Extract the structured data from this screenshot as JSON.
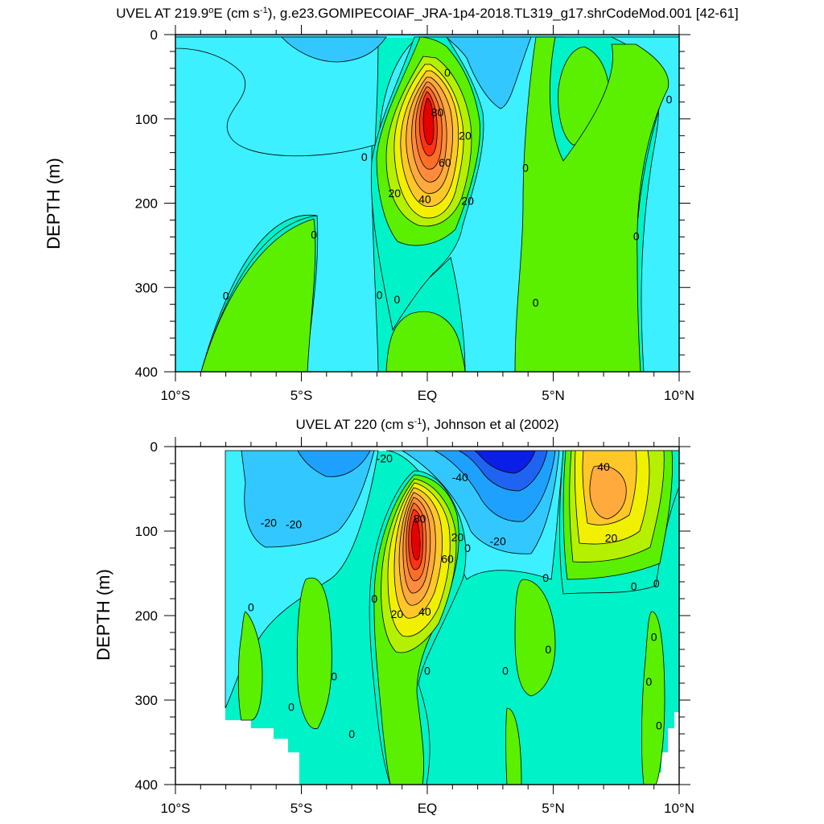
{
  "chart_data": [
    {
      "type": "contour",
      "title": "UVEL AT 219.9°E (cm s⁻¹), g.e23.GOMIPECOIAF_JRA-1p4-2018.TL319_g17.shrCodeMod.001 [42-61]",
      "title_parts": {
        "pre": "UVEL AT 219.9",
        "deg": "o",
        "mid": "E (cm s",
        "sup": "-1",
        "post": "), g.e23.GOMIPECOIAF_JRA-1p4-2018.TL319_g17.shrCodeMod.001 [42-61]"
      },
      "ylabel": "DEPTH (m)",
      "xlim": [
        -10,
        10
      ],
      "ylim": [
        400,
        0
      ],
      "x_ticks": [
        -10,
        -5,
        0,
        5,
        10
      ],
      "x_tick_labels": [
        "10°S",
        "5°S",
        "EQ",
        "5°N",
        "10°N"
      ],
      "y_ticks": [
        0,
        100,
        200,
        300,
        400
      ],
      "y_tick_labels": [
        "0",
        "100",
        "200",
        "300",
        "400"
      ],
      "contour_levels": [
        -40,
        -30,
        -20,
        -10,
        0,
        10,
        20,
        30,
        40,
        50,
        60,
        70,
        80,
        90
      ],
      "cores": [
        {
          "kind": "max",
          "x": 0.0,
          "y": 120,
          "value": 90
        },
        {
          "kind": "max",
          "x": 6.8,
          "y": 70,
          "value": 10
        },
        {
          "kind": "min",
          "x": 1.3,
          "y": 25,
          "value": -10
        }
      ],
      "contour_labels": [
        {
          "text": "80",
          "x": 0.4,
          "y": 92
        },
        {
          "text": "60",
          "x": 0.7,
          "y": 152
        },
        {
          "text": "40",
          "x": -0.1,
          "y": 195
        },
        {
          "text": "20",
          "x": -1.3,
          "y": 188
        },
        {
          "text": "20",
          "x": 1.5,
          "y": 120
        },
        {
          "text": "20",
          "x": 1.6,
          "y": 197
        },
        {
          "text": "0",
          "x": 0.8,
          "y": 45
        },
        {
          "text": "0",
          "x": -2.5,
          "y": 145
        },
        {
          "text": "0",
          "x": 3.9,
          "y": 158
        },
        {
          "text": "0",
          "x": -4.5,
          "y": 237
        },
        {
          "text": "0",
          "x": 8.3,
          "y": 239
        },
        {
          "text": "0",
          "x": 9.6,
          "y": 77
        },
        {
          "text": "0",
          "x": -8.0,
          "y": 310
        },
        {
          "text": "0",
          "x": -1.9,
          "y": 309
        },
        {
          "text": "0",
          "x": -1.2,
          "y": 314
        },
        {
          "text": "0",
          "x": 4.3,
          "y": 318
        }
      ]
    },
    {
      "type": "contour",
      "title": "UVEL AT 220 (cm s⁻¹), Johnson et al (2002)",
      "title_parts": {
        "pre": "UVEL AT 220 (cm s",
        "sup": "-1",
        "post": "), Johnson et al (2002)"
      },
      "ylabel": "DEPTH (m)",
      "xlim": [
        -10,
        10
      ],
      "ylim": [
        400,
        0
      ],
      "x_ticks": [
        -10,
        -5,
        0,
        5,
        10
      ],
      "x_tick_labels": [
        "10°S",
        "5°S",
        "EQ",
        "5°N",
        "10°N"
      ],
      "y_ticks": [
        0,
        100,
        200,
        300,
        400
      ],
      "y_tick_labels": [
        "0",
        "100",
        "200",
        "300",
        "400"
      ],
      "contour_levels": [
        -40,
        -30,
        -20,
        -10,
        0,
        10,
        20,
        30,
        40,
        50,
        60,
        70,
        80,
        90
      ],
      "cores": [
        {
          "kind": "max",
          "x": -0.3,
          "y": 118,
          "value": 90
        },
        {
          "kind": "max",
          "x": 6.9,
          "y": 60,
          "value": 40
        },
        {
          "kind": "min",
          "x": 2.7,
          "y": 10,
          "value": -40
        }
      ],
      "contour_labels": [
        {
          "text": "80",
          "x": -0.3,
          "y": 85
        },
        {
          "text": "60",
          "x": 0.8,
          "y": 133
        },
        {
          "text": "40",
          "x": -0.1,
          "y": 195
        },
        {
          "text": "20",
          "x": -1.2,
          "y": 198
        },
        {
          "text": "20",
          "x": 1.2,
          "y": 107
        },
        {
          "text": "20",
          "x": 7.3,
          "y": 108
        },
        {
          "text": "40",
          "x": 7.0,
          "y": 24
        },
        {
          "text": "-20",
          "x": -1.7,
          "y": 14
        },
        {
          "text": "-40",
          "x": 1.3,
          "y": 36
        },
        {
          "text": "-20",
          "x": 2.8,
          "y": 112
        },
        {
          "text": "-20",
          "x": -6.3,
          "y": 90
        },
        {
          "text": "-20",
          "x": -5.3,
          "y": 92
        },
        {
          "text": "0",
          "x": 1.6,
          "y": 120
        },
        {
          "text": "0",
          "x": 4.7,
          "y": 155
        },
        {
          "text": "0",
          "x": -7.0,
          "y": 190
        },
        {
          "text": "0",
          "x": -2.1,
          "y": 180
        },
        {
          "text": "0",
          "x": 0.0,
          "y": 265
        },
        {
          "text": "0",
          "x": -3.7,
          "y": 272
        },
        {
          "text": "0",
          "x": 3.1,
          "y": 265
        },
        {
          "text": "0",
          "x": 4.8,
          "y": 240
        },
        {
          "text": "0",
          "x": 8.2,
          "y": 165
        },
        {
          "text": "0",
          "x": 9.1,
          "y": 162
        },
        {
          "text": "0",
          "x": 9.0,
          "y": 225
        },
        {
          "text": "0",
          "x": 8.8,
          "y": 278
        },
        {
          "text": "0",
          "x": -5.4,
          "y": 308
        },
        {
          "text": "0",
          "x": -3.0,
          "y": 340
        },
        {
          "text": "0",
          "x": 9.2,
          "y": 330
        }
      ]
    }
  ],
  "colors": {
    "lt_neg40": "#0a1ee6",
    "neg40_neg30": "#1e64f0",
    "neg30_neg20": "#1ea0ff",
    "neg20_neg10": "#32c8ff",
    "neg10_0": "#3cf0ff",
    "zero_10": "#00f2c8",
    "p10_20": "#5af000",
    "p20_30": "#b4f000",
    "p30_40": "#f0f000",
    "p40_50": "#ffc828",
    "p50_60": "#ffaa3c",
    "p60_70": "#ff8c3c",
    "p70_80": "#ff6e28",
    "p80_90": "#ff3214",
    "gt_90": "#e60000"
  }
}
